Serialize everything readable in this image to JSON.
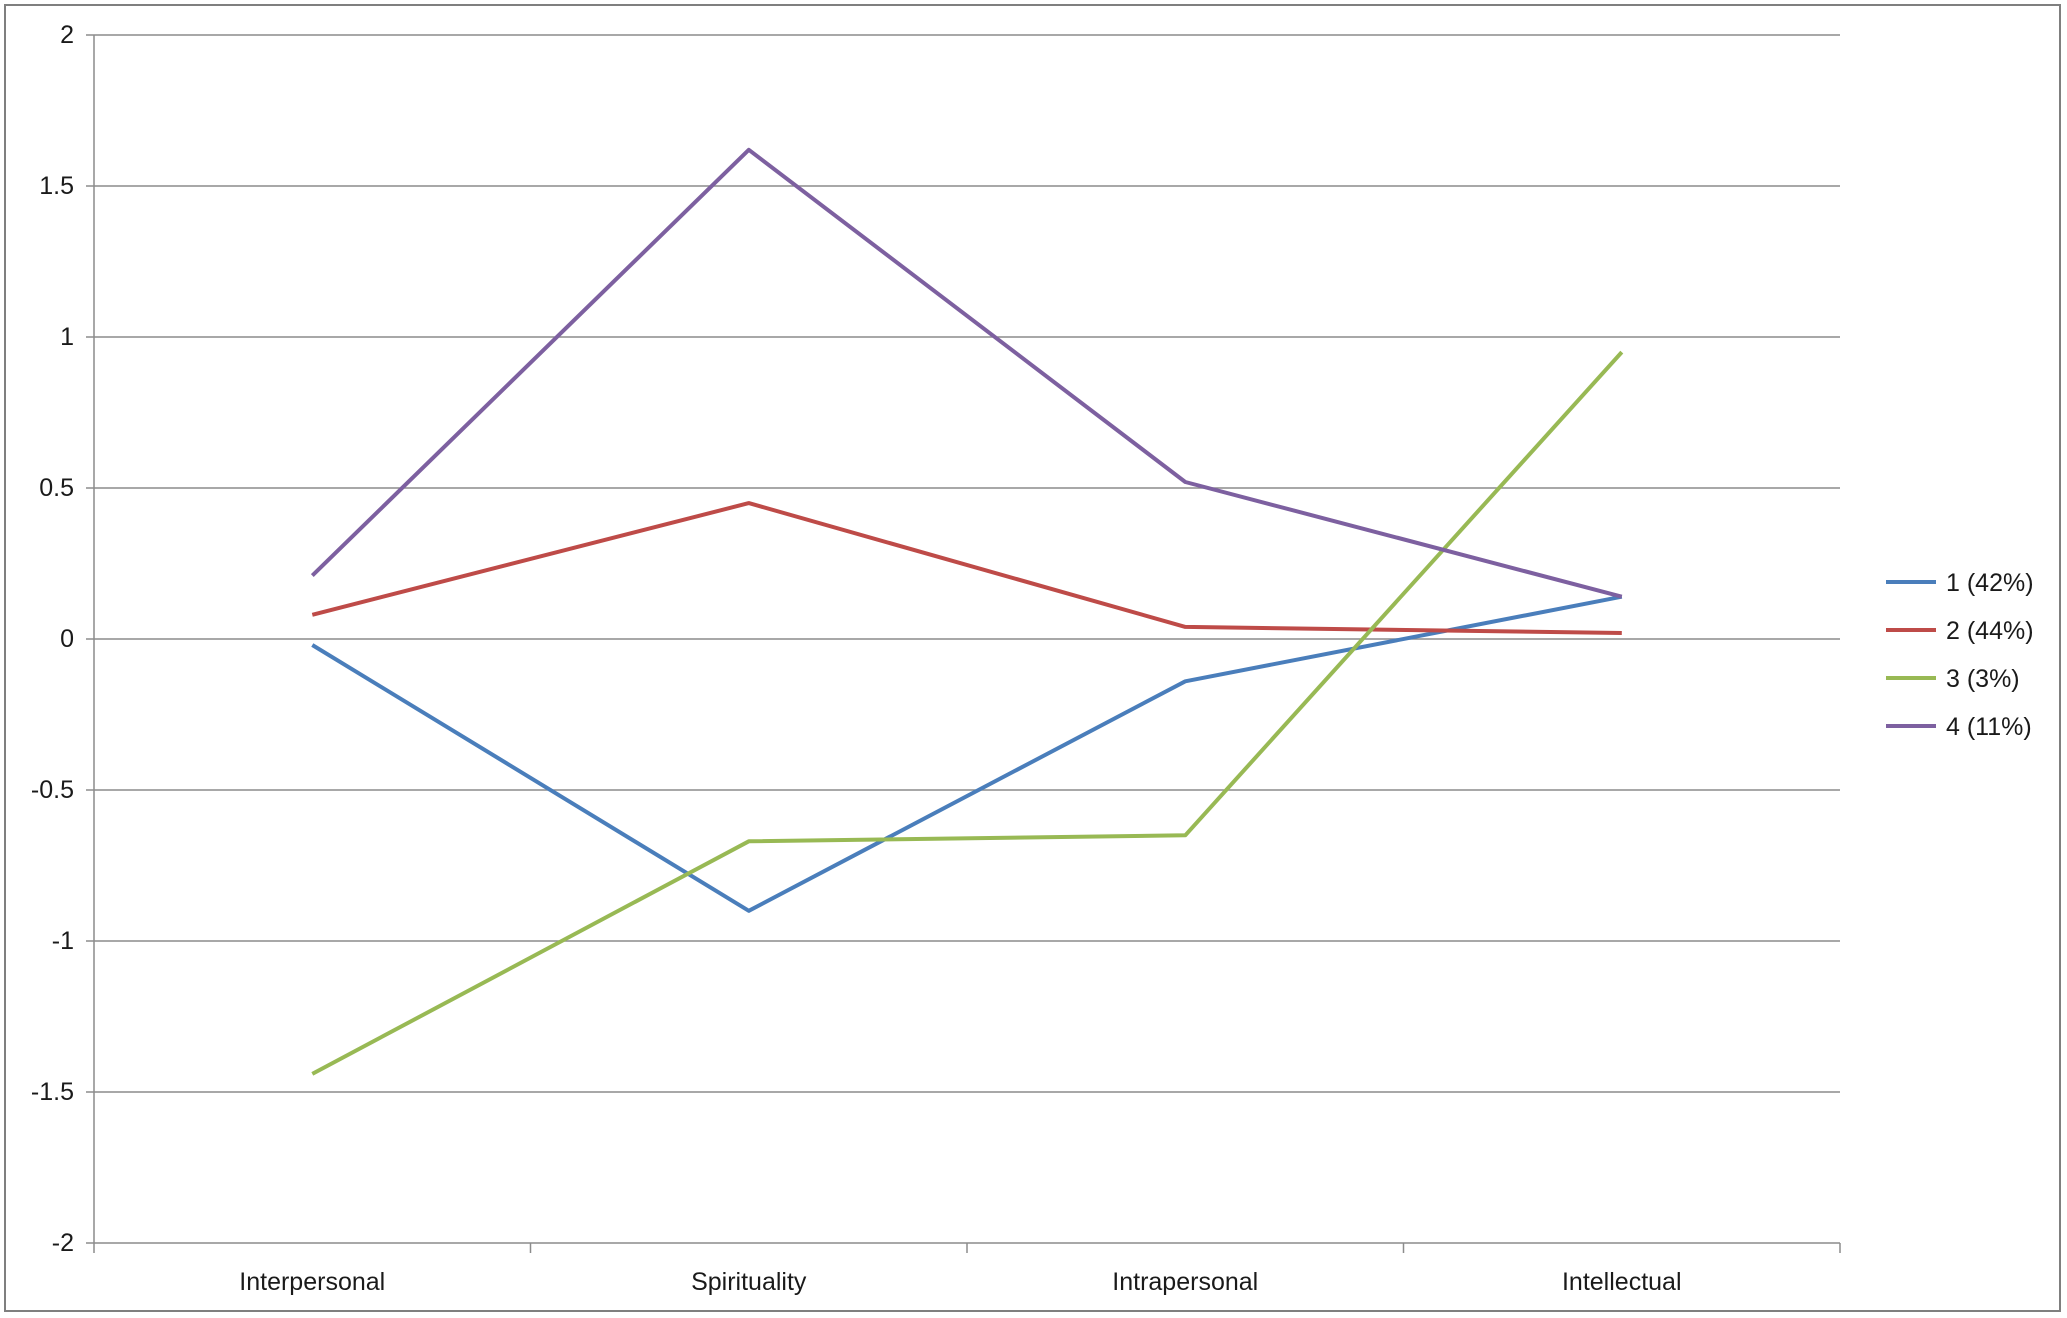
{
  "chart_data": {
    "type": "line",
    "categories": [
      "Interpersonal",
      "Spirituality",
      "Intrapersonal",
      "Intellectual"
    ],
    "ylim": [
      -2,
      2
    ],
    "yticks": [
      2,
      1.5,
      1,
      0.5,
      0,
      -0.5,
      -1,
      -1.5,
      -2
    ],
    "ytick_labels": [
      "2",
      "1.5",
      "1",
      "0.5",
      "0",
      "-0.5",
      "-1",
      "-1.5",
      "-2"
    ],
    "grid": true,
    "legend_position": "right",
    "title": "",
    "xlabel": "",
    "ylabel": "",
    "series": [
      {
        "name": "1 (42%)",
        "color": "#4a7ebb",
        "values": [
          -0.02,
          -0.9,
          -0.14,
          0.14
        ]
      },
      {
        "name": "2 (44%)",
        "color": "#be4b48",
        "values": [
          0.08,
          0.45,
          0.04,
          0.02
        ]
      },
      {
        "name": "3 (3%)",
        "color": "#98b954",
        "values": [
          -1.44,
          -0.67,
          -0.65,
          0.95
        ]
      },
      {
        "name": "4 (11%)",
        "color": "#7d60a0",
        "values": [
          0.21,
          1.62,
          0.52,
          0.14
        ]
      }
    ]
  }
}
